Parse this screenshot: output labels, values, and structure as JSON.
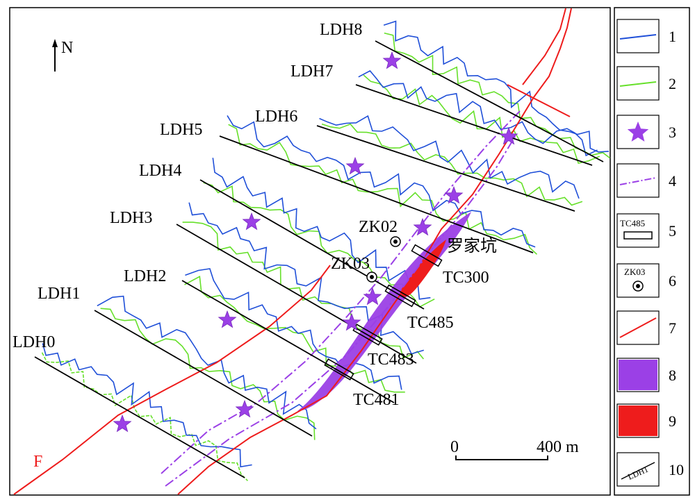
{
  "north": "N",
  "profiles": [
    {
      "id": "ldh0",
      "label": "LDH0"
    },
    {
      "id": "ldh1",
      "label": "LDH1"
    },
    {
      "id": "ldh2",
      "label": "LDH2"
    },
    {
      "id": "ldh3",
      "label": "LDH3"
    },
    {
      "id": "ldh4",
      "label": "LDH4"
    },
    {
      "id": "ldh5",
      "label": "LDH5"
    },
    {
      "id": "ldh6",
      "label": "LDH6"
    },
    {
      "id": "ldh7",
      "label": "LDH7"
    },
    {
      "id": "ldh8",
      "label": "LDH8"
    }
  ],
  "boreholes": [
    "ZK02",
    "ZK03"
  ],
  "trenches": [
    "TC300",
    "TC485",
    "TC483",
    "TC481"
  ],
  "place_name": "罗家坑",
  "fault_label": "F",
  "scale": {
    "start": "0",
    "end": "400 m"
  },
  "legend": [
    {
      "num": "1",
      "symbol": "blue-line"
    },
    {
      "num": "2",
      "symbol": "green-line"
    },
    {
      "num": "3",
      "symbol": "purple-star"
    },
    {
      "num": "4",
      "symbol": "purple-dash-dot-line"
    },
    {
      "num": "5",
      "symbol": "trench",
      "text": "TC485"
    },
    {
      "num": "6",
      "symbol": "borehole",
      "text": "ZK03"
    },
    {
      "num": "7",
      "symbol": "red-fault-line"
    },
    {
      "num": "8",
      "symbol": "purple-fill"
    },
    {
      "num": "9",
      "symbol": "red-fill"
    },
    {
      "num": "10",
      "symbol": "profile-line",
      "text": "LDH1"
    }
  ],
  "colors": {
    "blue": "#1f4fd8",
    "green": "#66e02a",
    "purple": "#9b40e6",
    "red": "#ee1c1c",
    "black": "#000000"
  }
}
